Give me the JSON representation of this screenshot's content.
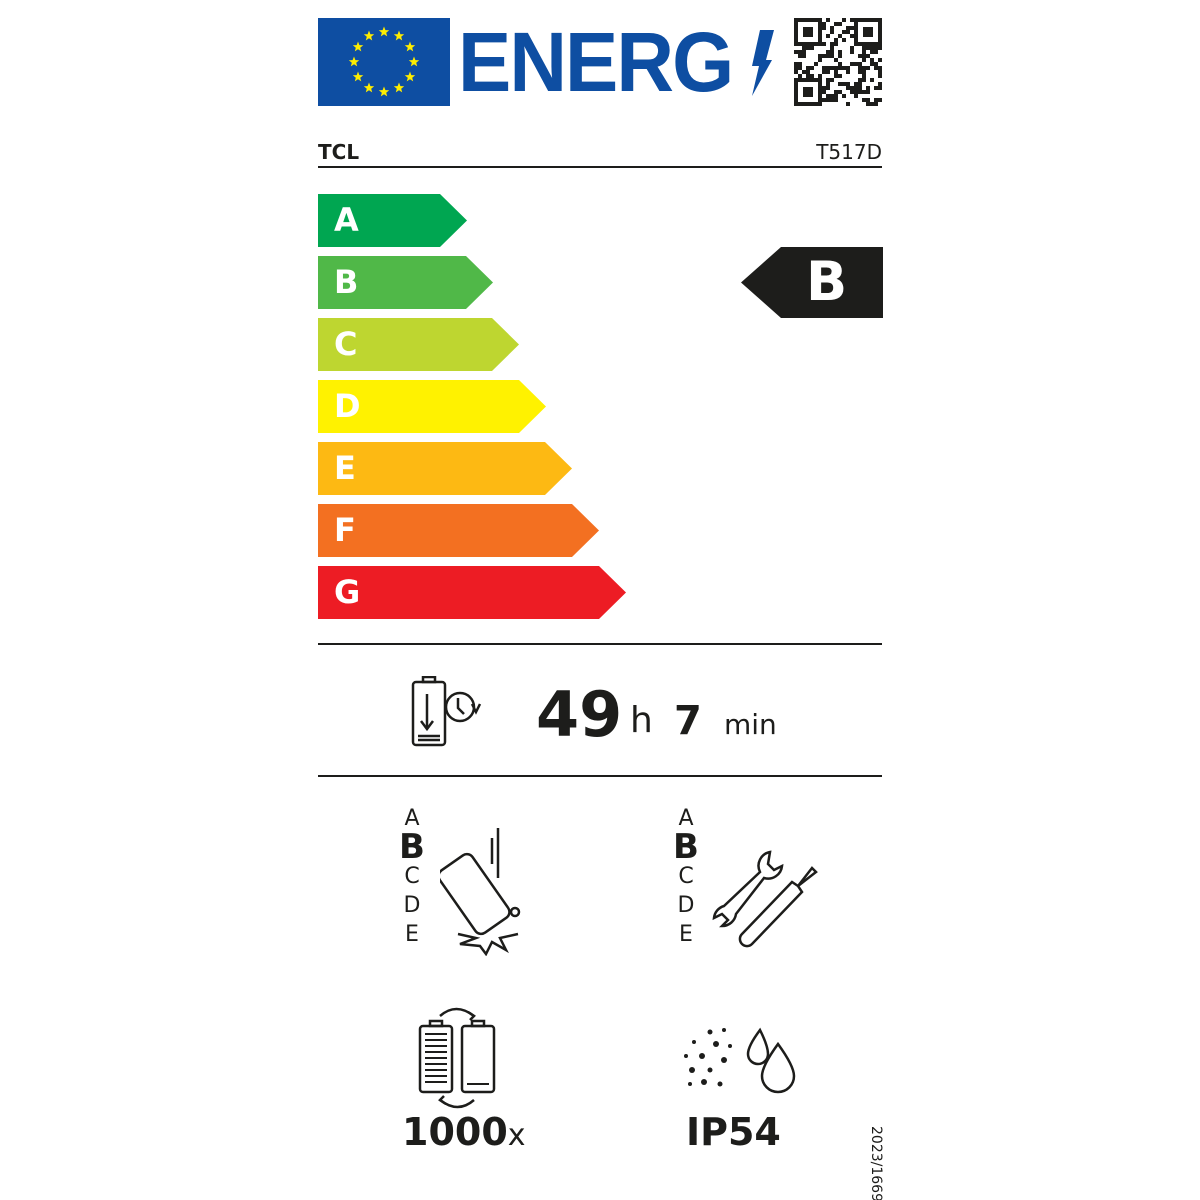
{
  "header": {
    "logo_text": "ENERG",
    "colors": {
      "eu_blue": "#0e4ea2",
      "eu_star": "#ffed00"
    },
    "qr_icon": "qr-code"
  },
  "supplier": "TCL",
  "model": "T517D",
  "energy_scale": {
    "classes": [
      {
        "label": "A",
        "color": "#00a651"
      },
      {
        "label": "B",
        "color": "#50b848"
      },
      {
        "label": "C",
        "color": "#bed630"
      },
      {
        "label": "D",
        "color": "#fff200"
      },
      {
        "label": "E",
        "color": "#fdb913"
      },
      {
        "label": "F",
        "color": "#f37021"
      },
      {
        "label": "G",
        "color": "#ed1c24"
      }
    ],
    "rating": "B"
  },
  "battery_endurance": {
    "hours": "49",
    "hours_unit": "h",
    "minutes": "7",
    "minutes_unit": "min"
  },
  "drop_resistance": {
    "scale": [
      "A",
      "B",
      "C",
      "D",
      "E"
    ],
    "selected": "B"
  },
  "repairability": {
    "scale": [
      "A",
      "B",
      "C",
      "D",
      "E"
    ],
    "selected": "B"
  },
  "battery_cycles": {
    "value": "1000",
    "unit": "x"
  },
  "ingress_protection": "IP54",
  "regulation": "2023/1669"
}
